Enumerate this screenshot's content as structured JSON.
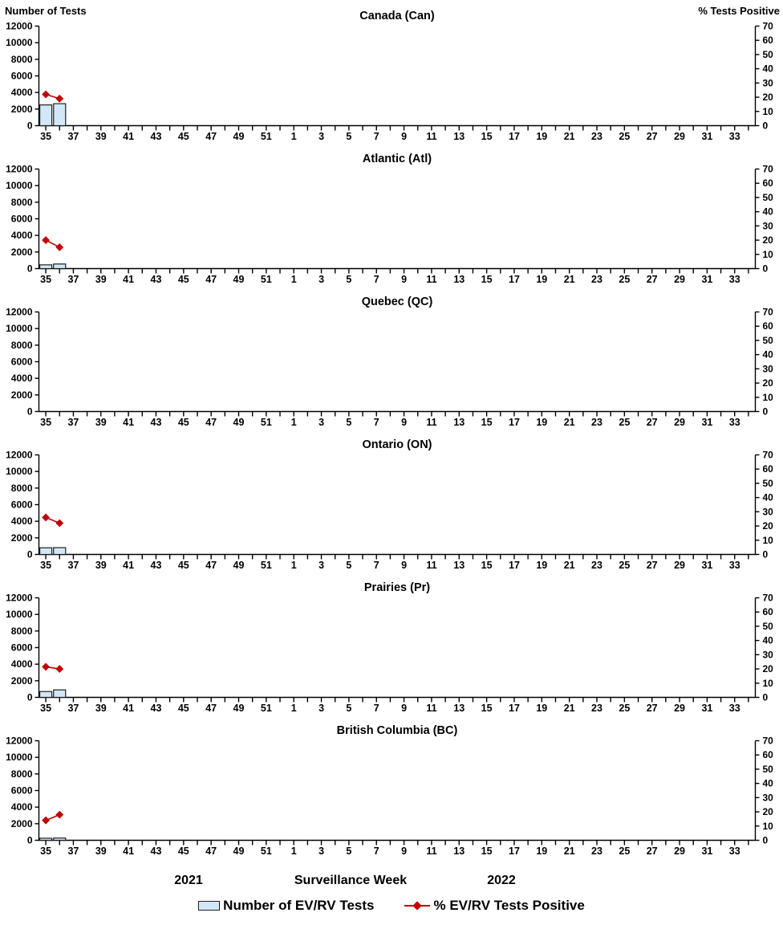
{
  "header": {
    "left_axis_title": "Number of Tests",
    "right_axis_title": "% Tests Positive"
  },
  "footer": {
    "year_left": "2021",
    "axis_label": "Surveillance Week",
    "year_right": "2022"
  },
  "legend": {
    "items": [
      {
        "type": "bar",
        "label": "Number of EV/RV Tests"
      },
      {
        "type": "line",
        "label": "% EV/RV Tests Positive"
      }
    ]
  },
  "colors": {
    "bar_fill": "#d2e8f8",
    "bar_stroke": "#1f1f1f",
    "line": "#c00000",
    "axis": "#000000",
    "text": "#000000"
  },
  "chart_data": {
    "type": "bar",
    "subtype": "combo-bar-line-small-multiples",
    "x_axis_label": "Surveillance Week",
    "x_categories": [
      35,
      36,
      37,
      38,
      39,
      40,
      41,
      42,
      43,
      44,
      45,
      46,
      47,
      48,
      49,
      50,
      51,
      52,
      1,
      2,
      3,
      4,
      5,
      6,
      7,
      8,
      9,
      10,
      11,
      12,
      13,
      14,
      15,
      16,
      17,
      18,
      19,
      20,
      21,
      22,
      23,
      24,
      25,
      26,
      27,
      28,
      29,
      30,
      31,
      32,
      33,
      34
    ],
    "x_tick_labels": [
      35,
      37,
      39,
      41,
      43,
      45,
      47,
      49,
      51,
      1,
      3,
      5,
      7,
      9,
      11,
      13,
      15,
      17,
      19,
      21,
      23,
      25,
      27,
      29,
      31,
      33
    ],
    "x_year_left": "2021",
    "x_year_right": "2022",
    "left_axis": {
      "title": "Number of Tests",
      "min": 0,
      "max": 12000,
      "step": 2000
    },
    "right_axis": {
      "title": "% Tests Positive",
      "min": 0,
      "max": 70,
      "step": 10
    },
    "grid": false,
    "legend_position": "bottom",
    "bar_series_name": "Number of EV/RV Tests",
    "line_series_name": "% EV/RV Tests Positive",
    "panels": [
      {
        "title": "Canada (Can)",
        "points": [
          {
            "week": 35,
            "tests": 2500,
            "pct": 22
          },
          {
            "week": 36,
            "tests": 2650,
            "pct": 19
          }
        ]
      },
      {
        "title": "Atlantic (Atl)",
        "points": [
          {
            "week": 35,
            "tests": 450,
            "pct": 20
          },
          {
            "week": 36,
            "tests": 550,
            "pct": 15
          }
        ]
      },
      {
        "title": "Quebec (QC)",
        "points": []
      },
      {
        "title": "Ontario (ON)",
        "points": [
          {
            "week": 35,
            "tests": 800,
            "pct": 26
          },
          {
            "week": 36,
            "tests": 820,
            "pct": 22
          }
        ]
      },
      {
        "title": "Prairies (Pr)",
        "points": [
          {
            "week": 35,
            "tests": 700,
            "pct": 21.5
          },
          {
            "week": 36,
            "tests": 900,
            "pct": 20
          }
        ]
      },
      {
        "title": "British Columbia (BC)",
        "points": [
          {
            "week": 35,
            "tests": 250,
            "pct": 14
          },
          {
            "week": 36,
            "tests": 270,
            "pct": 18
          }
        ]
      }
    ]
  }
}
